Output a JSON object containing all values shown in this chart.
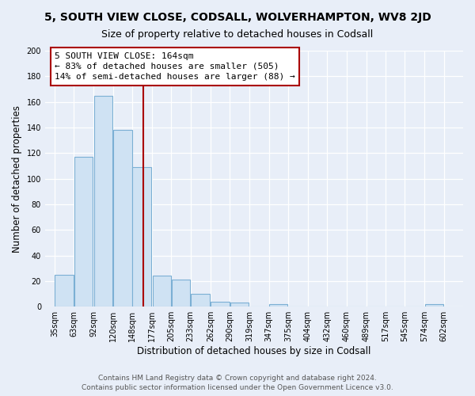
{
  "title": "5, SOUTH VIEW CLOSE, CODSALL, WOLVERHAMPTON, WV8 2JD",
  "subtitle": "Size of property relative to detached houses in Codsall",
  "xlabel": "Distribution of detached houses by size in Codsall",
  "ylabel": "Number of detached properties",
  "bar_left_edges": [
    35,
    63,
    92,
    120,
    148,
    177,
    205,
    233,
    262,
    290,
    319,
    347,
    375,
    404,
    432,
    460,
    489,
    517,
    545,
    574
  ],
  "bar_heights": [
    25,
    117,
    165,
    138,
    109,
    24,
    21,
    10,
    4,
    3,
    0,
    2,
    0,
    0,
    0,
    0,
    0,
    0,
    0,
    2
  ],
  "bin_width": 28,
  "bar_color": "#cfe2f3",
  "bar_edge_color": "#7bafd4",
  "vline_x": 164,
  "vline_color": "#aa0000",
  "annotation_title": "5 SOUTH VIEW CLOSE: 164sqm",
  "annotation_line1": "← 83% of detached houses are smaller (505)",
  "annotation_line2": "14% of semi-detached houses are larger (88) →",
  "tick_labels": [
    "35sqm",
    "63sqm",
    "92sqm",
    "120sqm",
    "148sqm",
    "177sqm",
    "205sqm",
    "233sqm",
    "262sqm",
    "290sqm",
    "319sqm",
    "347sqm",
    "375sqm",
    "404sqm",
    "432sqm",
    "460sqm",
    "489sqm",
    "517sqm",
    "545sqm",
    "574sqm",
    "602sqm"
  ],
  "tick_positions": [
    35,
    63,
    92,
    120,
    148,
    177,
    205,
    233,
    262,
    290,
    319,
    347,
    375,
    404,
    432,
    460,
    489,
    517,
    545,
    574,
    602
  ],
  "ylim": [
    0,
    200
  ],
  "yticks": [
    0,
    20,
    40,
    60,
    80,
    100,
    120,
    140,
    160,
    180,
    200
  ],
  "footer_line1": "Contains HM Land Registry data © Crown copyright and database right 2024.",
  "footer_line2": "Contains public sector information licensed under the Open Government Licence v3.0.",
  "bg_color": "#e8eef8",
  "plot_bg_color": "#e8eef8",
  "grid_color": "#ffffff",
  "title_fontsize": 10,
  "subtitle_fontsize": 9,
  "axis_label_fontsize": 8.5,
  "tick_fontsize": 7,
  "footer_fontsize": 6.5,
  "ann_fontsize": 8,
  "xlim_left": 21,
  "xlim_right": 630
}
